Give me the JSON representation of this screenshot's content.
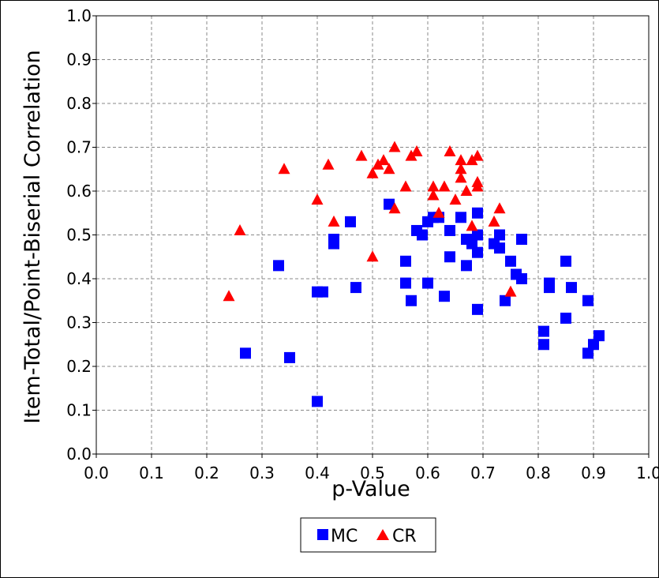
{
  "chart_data": {
    "type": "scatter",
    "title": "",
    "xlabel": "p-Value",
    "ylabel": "Item-Total/Point-Biserial Correlation",
    "xlim": [
      0.0,
      1.0
    ],
    "ylim": [
      0.0,
      1.0
    ],
    "x_ticks": [
      "0.0",
      "0.1",
      "0.2",
      "0.3",
      "0.4",
      "0.5",
      "0.6",
      "0.7",
      "0.8",
      "0.9",
      "1.0"
    ],
    "y_ticks": [
      "0.0",
      "0.1",
      "0.2",
      "0.3",
      "0.4",
      "0.5",
      "0.6",
      "0.7",
      "0.8",
      "0.9",
      "1.0"
    ],
    "grid": true,
    "legend_position": "bottom-center",
    "series": [
      {
        "name": "MC",
        "marker": "square",
        "color": "#0000ff",
        "points": [
          [
            0.27,
            0.23
          ],
          [
            0.33,
            0.43
          ],
          [
            0.35,
            0.22
          ],
          [
            0.4,
            0.12
          ],
          [
            0.4,
            0.37
          ],
          [
            0.41,
            0.37
          ],
          [
            0.43,
            0.49
          ],
          [
            0.43,
            0.48
          ],
          [
            0.46,
            0.53
          ],
          [
            0.47,
            0.38
          ],
          [
            0.53,
            0.57
          ],
          [
            0.56,
            0.39
          ],
          [
            0.56,
            0.44
          ],
          [
            0.57,
            0.35
          ],
          [
            0.58,
            0.51
          ],
          [
            0.59,
            0.5
          ],
          [
            0.6,
            0.53
          ],
          [
            0.6,
            0.39
          ],
          [
            0.61,
            0.54
          ],
          [
            0.62,
            0.54
          ],
          [
            0.63,
            0.36
          ],
          [
            0.64,
            0.51
          ],
          [
            0.64,
            0.45
          ],
          [
            0.66,
            0.54
          ],
          [
            0.67,
            0.49
          ],
          [
            0.67,
            0.43
          ],
          [
            0.68,
            0.48
          ],
          [
            0.69,
            0.5
          ],
          [
            0.69,
            0.46
          ],
          [
            0.69,
            0.55
          ],
          [
            0.69,
            0.33
          ],
          [
            0.72,
            0.48
          ],
          [
            0.73,
            0.5
          ],
          [
            0.73,
            0.47
          ],
          [
            0.74,
            0.35
          ],
          [
            0.75,
            0.44
          ],
          [
            0.76,
            0.41
          ],
          [
            0.77,
            0.49
          ],
          [
            0.77,
            0.4
          ],
          [
            0.81,
            0.25
          ],
          [
            0.81,
            0.28
          ],
          [
            0.82,
            0.38
          ],
          [
            0.82,
            0.39
          ],
          [
            0.85,
            0.31
          ],
          [
            0.85,
            0.44
          ],
          [
            0.86,
            0.38
          ],
          [
            0.89,
            0.23
          ],
          [
            0.89,
            0.35
          ],
          [
            0.9,
            0.25
          ],
          [
            0.91,
            0.27
          ]
        ]
      },
      {
        "name": "CR",
        "marker": "triangle",
        "color": "#ff0000",
        "points": [
          [
            0.24,
            0.36
          ],
          [
            0.26,
            0.51
          ],
          [
            0.34,
            0.65
          ],
          [
            0.4,
            0.58
          ],
          [
            0.42,
            0.66
          ],
          [
            0.43,
            0.53
          ],
          [
            0.48,
            0.68
          ],
          [
            0.5,
            0.64
          ],
          [
            0.5,
            0.45
          ],
          [
            0.51,
            0.66
          ],
          [
            0.52,
            0.67
          ],
          [
            0.53,
            0.65
          ],
          [
            0.54,
            0.7
          ],
          [
            0.54,
            0.56
          ],
          [
            0.56,
            0.61
          ],
          [
            0.57,
            0.68
          ],
          [
            0.58,
            0.69
          ],
          [
            0.61,
            0.61
          ],
          [
            0.61,
            0.59
          ],
          [
            0.62,
            0.55
          ],
          [
            0.63,
            0.61
          ],
          [
            0.64,
            0.69
          ],
          [
            0.65,
            0.58
          ],
          [
            0.66,
            0.67
          ],
          [
            0.66,
            0.65
          ],
          [
            0.66,
            0.63
          ],
          [
            0.67,
            0.6
          ],
          [
            0.68,
            0.67
          ],
          [
            0.68,
            0.52
          ],
          [
            0.69,
            0.62
          ],
          [
            0.69,
            0.61
          ],
          [
            0.69,
            0.68
          ],
          [
            0.72,
            0.53
          ],
          [
            0.73,
            0.56
          ],
          [
            0.75,
            0.37
          ]
        ]
      }
    ]
  }
}
